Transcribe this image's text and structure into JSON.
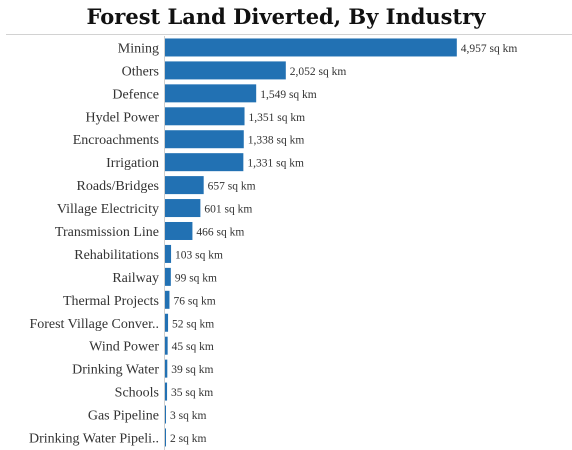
{
  "chart_data": {
    "type": "bar",
    "orientation": "horizontal",
    "title": "Forest Land Diverted, By Industry",
    "xlabel": "",
    "ylabel": "",
    "unit": "sq km",
    "xlim": [
      0,
      5300
    ],
    "grid": false,
    "legend": "none",
    "bar_color": "#2271b3",
    "categories": [
      "Mining",
      "Others",
      "Defence",
      "Hydel Power",
      "Encroachments",
      "Irrigation",
      "Roads/Bridges",
      "Village Electricity",
      "Transmission Line",
      "Rehabilitations",
      "Railway",
      "Thermal Projects",
      "Forest Village Conver..",
      "Wind Power",
      "Drinking Water",
      "Schools",
      "Gas Pipeline",
      "Drinking Water Pipeli.."
    ],
    "values": [
      4957,
      2052,
      1549,
      1351,
      1338,
      1331,
      657,
      601,
      466,
      103,
      99,
      76,
      52,
      45,
      39,
      35,
      3,
      2
    ],
    "value_labels": [
      "4,957 sq km",
      "2,052 sq km",
      "1,549 sq km",
      "1,351 sq km",
      "1,338 sq km",
      "1,331 sq km",
      "657 sq km",
      "601 sq km",
      "466 sq km",
      "103 sq km",
      "99 sq km",
      "76 sq km",
      "52 sq km",
      "45 sq km",
      "39 sq km",
      "35 sq km",
      "3 sq km",
      "2 sq km"
    ]
  }
}
